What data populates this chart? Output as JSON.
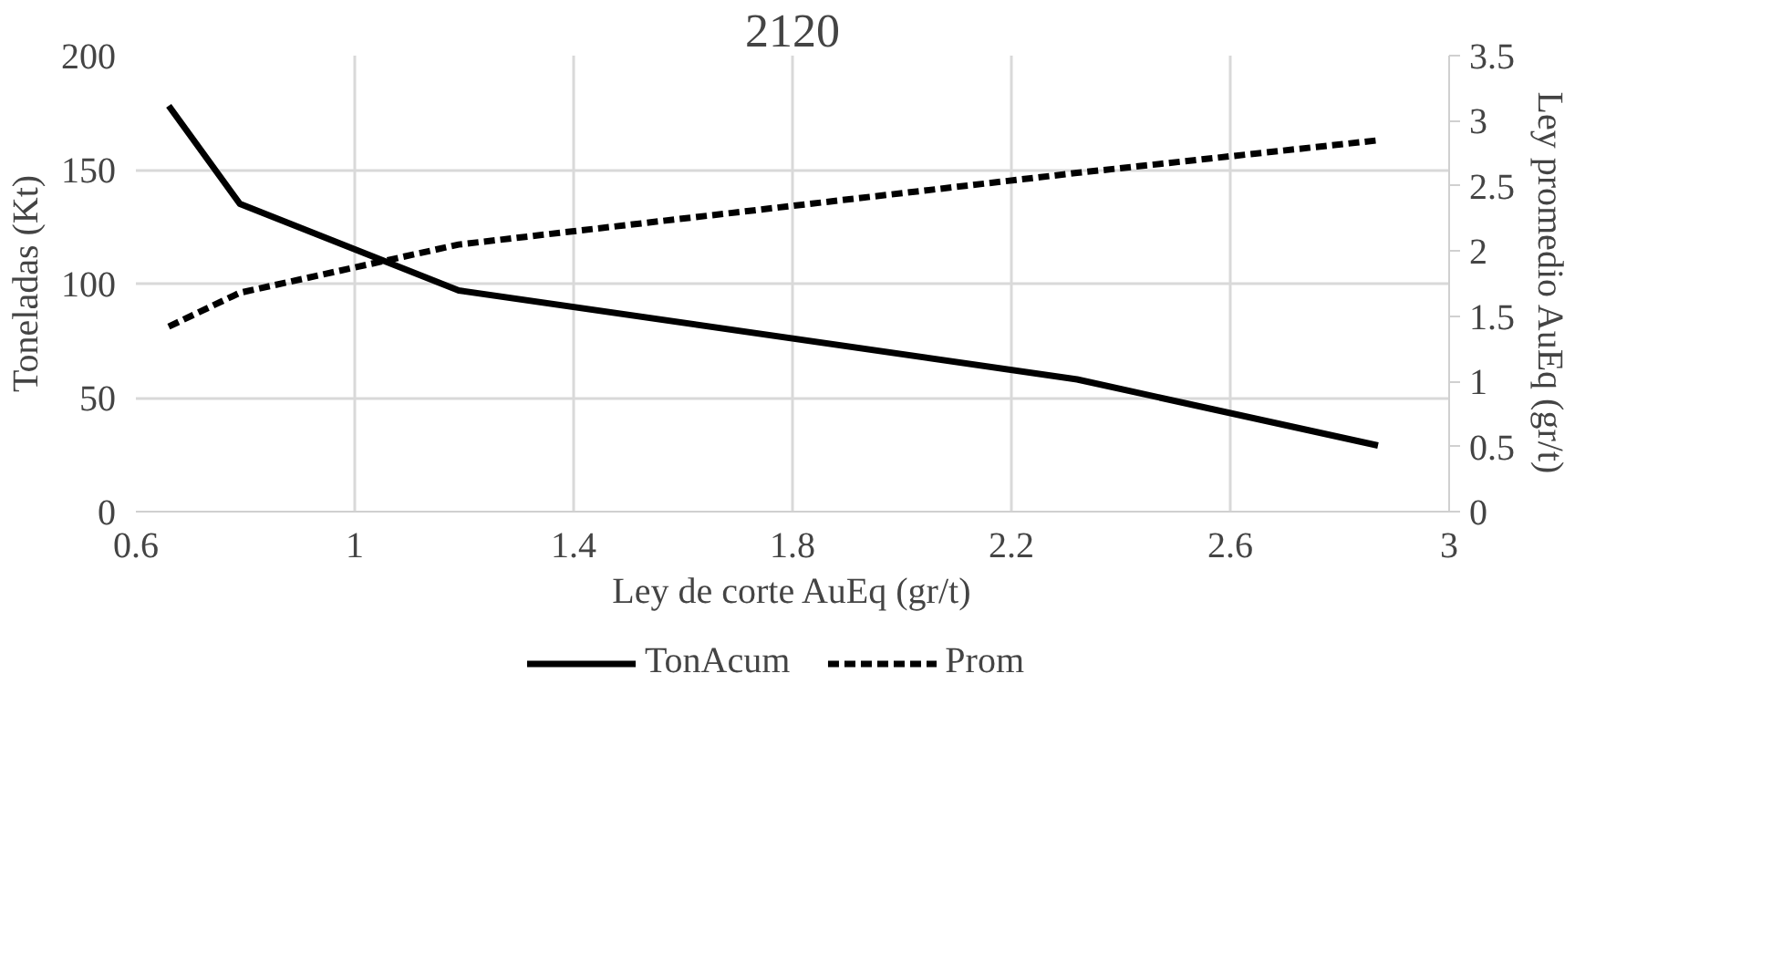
{
  "chart_data": {
    "type": "line",
    "title": "2120",
    "xlabel": "Ley de corte AuEq (gr/t)",
    "ylabel": "Toneladas (Kt)",
    "y2label": "Ley promedio AuEq (gr/t)",
    "x": [
      0.66,
      0.79,
      1.19,
      2.32,
      2.87
    ],
    "series": [
      {
        "name": "TonAcum",
        "color": "#000000",
        "values": [
          178,
          135,
          97,
          58,
          29
        ],
        "line_style": "solid"
      },
      {
        "name": "Prom",
        "color": "#000000",
        "values": [
          1.42,
          1.68,
          2.05,
          2.6,
          2.85
        ],
        "axis": "y2",
        "line_style": "dashed"
      }
    ],
    "xlim": [
      0.6,
      3
    ],
    "xticks": [
      0.6,
      1,
      1.4,
      1.8,
      2.2,
      2.6,
      3
    ],
    "ylim": [
      0,
      200
    ],
    "yticks": [
      0,
      50,
      100,
      150,
      200
    ],
    "y2lim": [
      0,
      3.5
    ],
    "y2ticks": [
      0,
      0.5,
      1,
      1.5,
      2,
      2.5,
      3,
      3.5
    ],
    "grid": true,
    "legend": "bottom",
    "marker": "none"
  }
}
